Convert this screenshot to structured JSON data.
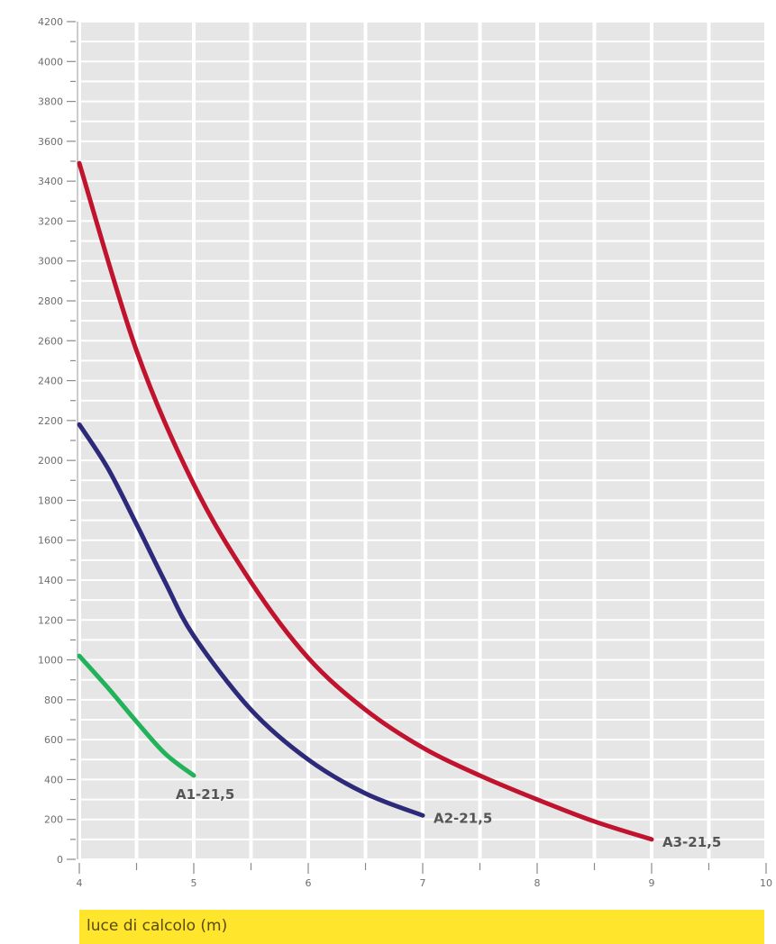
{
  "chart_data": {
    "type": "line",
    "title": "",
    "xlabel": "luce di calcolo (m)",
    "ylabel": "",
    "xlim": [
      4,
      10
    ],
    "ylim": [
      0,
      4200
    ],
    "grid": true,
    "x_ticks": [
      4,
      5,
      6,
      7,
      8,
      9,
      10
    ],
    "y_ticks": [
      0,
      200,
      400,
      600,
      800,
      1000,
      1200,
      1400,
      1600,
      1800,
      2000,
      2200,
      2400,
      2600,
      2800,
      3000,
      3200,
      3400,
      3600,
      3800,
      4000,
      4200
    ],
    "series": [
      {
        "name": "A1-21,5",
        "color": "#22b35a",
        "x": [
          4.0,
          4.25,
          4.5,
          4.75,
          5.0
        ],
        "y": [
          1020,
          860,
          690,
          530,
          420
        ]
      },
      {
        "name": "A2-21,5",
        "color": "#2e2a7a",
        "x": [
          4.0,
          4.25,
          4.5,
          4.75,
          5.0,
          5.5,
          6.0,
          6.5,
          7.0
        ],
        "y": [
          2180,
          1960,
          1680,
          1390,
          1120,
          750,
          500,
          330,
          220
        ]
      },
      {
        "name": "A3-21,5",
        "color": "#c0132e",
        "x": [
          4.0,
          4.5,
          5.0,
          5.5,
          6.0,
          6.5,
          7.0,
          7.5,
          8.0,
          8.5,
          9.0
        ],
        "y": [
          3490,
          2550,
          1880,
          1390,
          1010,
          750,
          560,
          420,
          300,
          190,
          100
        ]
      }
    ]
  }
}
